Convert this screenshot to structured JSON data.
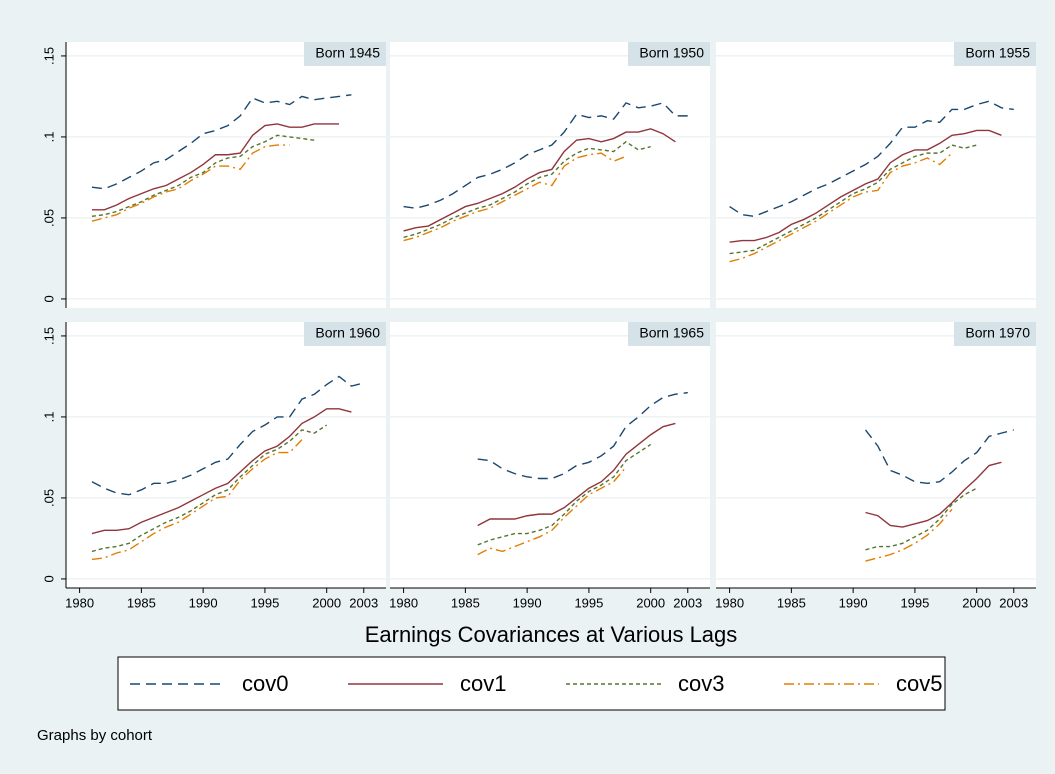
{
  "chart_data": {
    "type": "line",
    "xlabel": "Earnings Covariances at Various Lags",
    "note": "Graphs by cohort",
    "legend_position": "bottom",
    "grid": true,
    "x": [
      1980,
      1981,
      1982,
      1983,
      1984,
      1985,
      1986,
      1987,
      1988,
      1989,
      1990,
      1991,
      1992,
      1993,
      1994,
      1995,
      1996,
      1997,
      1998,
      1999,
      2000,
      2001,
      2002,
      2003
    ],
    "xlim": [
      1978.9,
      2004.8
    ],
    "ylim": [
      -0.0056,
      0.1586
    ],
    "xticks": [
      1980,
      1985,
      1990,
      1995,
      2000,
      2003
    ],
    "yticks": [
      0,
      {
        "value": 0.05,
        "label": ".05"
      },
      {
        "value": 0.1,
        "label": ".1"
      },
      {
        "value": 0.15,
        "label": ".15"
      }
    ],
    "series": [
      {
        "name": "cov0",
        "color": "#1a476f",
        "dash": "10,6"
      },
      {
        "name": "cov1",
        "color": "#90353b",
        "dash": "none"
      },
      {
        "name": "cov3",
        "color": "#55752f",
        "dash": "4,3"
      },
      {
        "name": "cov5",
        "color": "#e37e00",
        "dash": "10,4,2,4"
      }
    ],
    "panels": [
      {
        "title": "Born 1945",
        "values": [
          [
            null,
            0.069,
            0.068,
            0.071,
            0.075,
            0.079,
            0.084,
            0.086,
            0.091,
            0.096,
            0.102,
            0.104,
            0.107,
            0.113,
            0.124,
            0.121,
            0.122,
            0.12,
            0.125,
            0.123,
            0.124,
            0.125,
            0.126,
            null
          ],
          [
            null,
            0.055,
            0.055,
            0.058,
            0.062,
            0.065,
            0.068,
            0.07,
            0.074,
            0.078,
            0.083,
            0.089,
            0.089,
            0.09,
            0.101,
            0.107,
            0.108,
            0.106,
            0.106,
            0.108,
            0.108,
            0.108,
            null,
            null
          ],
          [
            null,
            0.051,
            0.052,
            0.054,
            0.057,
            0.06,
            0.064,
            0.067,
            0.07,
            0.075,
            0.078,
            0.084,
            0.087,
            0.088,
            0.094,
            0.097,
            0.101,
            0.1,
            0.099,
            0.098,
            null,
            null,
            null,
            null
          ],
          [
            null,
            0.048,
            0.05,
            0.052,
            0.056,
            0.059,
            0.063,
            0.066,
            0.068,
            0.073,
            0.077,
            0.082,
            0.082,
            0.08,
            0.09,
            0.094,
            0.095,
            0.095,
            null,
            null,
            null,
            null,
            null,
            null
          ]
        ]
      },
      {
        "title": "Born 1950",
        "values": [
          [
            0.057,
            0.056,
            0.058,
            0.061,
            0.065,
            0.07,
            0.075,
            0.077,
            0.08,
            0.084,
            0.089,
            0.092,
            0.095,
            0.103,
            0.114,
            0.112,
            0.113,
            0.111,
            0.121,
            0.118,
            0.119,
            0.121,
            0.113,
            0.113
          ],
          [
            0.042,
            0.044,
            0.045,
            0.049,
            0.053,
            0.057,
            0.059,
            0.062,
            0.065,
            0.069,
            0.074,
            0.078,
            0.08,
            0.091,
            0.098,
            0.099,
            0.097,
            0.099,
            0.103,
            0.103,
            0.105,
            0.102,
            0.097,
            null
          ],
          [
            0.038,
            0.04,
            0.043,
            0.046,
            0.05,
            0.053,
            0.056,
            0.058,
            0.062,
            0.066,
            0.071,
            0.075,
            0.077,
            0.085,
            0.09,
            0.093,
            0.092,
            0.091,
            0.097,
            0.092,
            0.094,
            null,
            null,
            null
          ],
          [
            0.036,
            0.038,
            0.041,
            0.044,
            0.048,
            0.051,
            0.054,
            0.056,
            0.06,
            0.064,
            0.068,
            0.072,
            0.07,
            0.082,
            0.087,
            0.089,
            0.09,
            0.085,
            0.088,
            null,
            null,
            null,
            null,
            null
          ]
        ]
      },
      {
        "title": "Born 1955",
        "values": [
          [
            0.057,
            0.052,
            0.051,
            0.054,
            0.057,
            0.06,
            0.064,
            0.068,
            0.071,
            0.075,
            0.079,
            0.083,
            0.088,
            0.096,
            0.106,
            0.106,
            0.11,
            0.109,
            0.117,
            0.117,
            0.12,
            0.122,
            0.118,
            0.117
          ],
          [
            0.035,
            0.036,
            0.036,
            0.038,
            0.041,
            0.046,
            0.049,
            0.053,
            0.058,
            0.063,
            0.067,
            0.071,
            0.074,
            0.084,
            0.089,
            0.092,
            0.092,
            0.096,
            0.101,
            0.102,
            0.104,
            0.104,
            0.101,
            null
          ],
          [
            0.028,
            0.029,
            0.03,
            0.034,
            0.038,
            0.042,
            0.046,
            0.05,
            0.055,
            0.06,
            0.065,
            0.068,
            0.072,
            0.08,
            0.084,
            0.088,
            0.09,
            0.09,
            0.095,
            0.093,
            0.095,
            null,
            null,
            null
          ],
          [
            0.023,
            0.025,
            0.028,
            0.032,
            0.036,
            0.04,
            0.044,
            0.048,
            0.053,
            0.058,
            0.063,
            0.066,
            0.067,
            0.078,
            0.082,
            0.084,
            0.087,
            0.083,
            0.09,
            null,
            null,
            null,
            null,
            null
          ]
        ]
      },
      {
        "title": "Born 1960",
        "values": [
          [
            null,
            0.06,
            0.056,
            0.053,
            0.052,
            0.055,
            0.059,
            0.059,
            0.061,
            0.064,
            0.068,
            0.072,
            0.074,
            0.083,
            0.091,
            0.095,
            0.1,
            0.1,
            0.111,
            0.114,
            0.12,
            0.125,
            0.119,
            0.121
          ],
          [
            null,
            0.028,
            0.03,
            0.03,
            0.031,
            0.035,
            0.038,
            0.041,
            0.044,
            0.048,
            0.052,
            0.056,
            0.059,
            0.066,
            0.073,
            0.079,
            0.082,
            0.088,
            0.096,
            0.1,
            0.105,
            0.105,
            0.103,
            null
          ],
          [
            null,
            0.017,
            0.019,
            0.02,
            0.022,
            0.027,
            0.031,
            0.035,
            0.038,
            0.042,
            0.047,
            0.052,
            0.055,
            0.063,
            0.07,
            0.077,
            0.08,
            0.085,
            0.092,
            0.09,
            0.095,
            null,
            null,
            null
          ],
          [
            null,
            0.012,
            0.013,
            0.016,
            0.018,
            0.023,
            0.028,
            0.032,
            0.035,
            0.04,
            0.045,
            0.05,
            0.051,
            0.061,
            0.068,
            0.074,
            0.078,
            0.078,
            0.086,
            null,
            null,
            null,
            null,
            null
          ]
        ]
      },
      {
        "title": "Born 1965",
        "values": [
          [
            null,
            null,
            null,
            null,
            null,
            null,
            0.074,
            0.073,
            0.068,
            0.065,
            0.063,
            0.062,
            0.062,
            0.065,
            0.07,
            0.072,
            0.076,
            0.082,
            0.094,
            0.1,
            0.107,
            0.112,
            0.114,
            0.115
          ],
          [
            null,
            null,
            null,
            null,
            null,
            null,
            0.033,
            0.037,
            0.037,
            0.037,
            0.039,
            0.04,
            0.04,
            0.044,
            0.05,
            0.056,
            0.06,
            0.067,
            0.077,
            0.083,
            0.089,
            0.094,
            0.096,
            null
          ],
          [
            null,
            null,
            null,
            null,
            null,
            null,
            0.021,
            0.024,
            0.026,
            0.028,
            0.028,
            0.03,
            0.033,
            0.04,
            0.048,
            0.054,
            0.058,
            0.063,
            0.073,
            0.078,
            0.083,
            null,
            null,
            null
          ],
          [
            null,
            null,
            null,
            null,
            null,
            null,
            0.015,
            0.019,
            0.017,
            0.02,
            0.023,
            0.026,
            0.03,
            0.038,
            0.045,
            0.052,
            0.056,
            0.06,
            0.069,
            null,
            null,
            null,
            null,
            null
          ]
        ]
      },
      {
        "title": "Born 1970",
        "values": [
          [
            null,
            null,
            null,
            null,
            null,
            null,
            null,
            null,
            null,
            null,
            null,
            0.092,
            0.082,
            0.067,
            0.064,
            0.06,
            0.059,
            0.06,
            0.066,
            0.073,
            0.078,
            0.088,
            0.09,
            0.092
          ],
          [
            null,
            null,
            null,
            null,
            null,
            null,
            null,
            null,
            null,
            null,
            null,
            0.041,
            0.039,
            0.033,
            0.032,
            0.034,
            0.036,
            0.04,
            0.047,
            0.055,
            0.062,
            0.07,
            0.072,
            null
          ],
          [
            null,
            null,
            null,
            null,
            null,
            null,
            null,
            null,
            null,
            null,
            null,
            0.018,
            0.02,
            0.02,
            0.022,
            0.026,
            0.03,
            0.037,
            0.046,
            0.052,
            0.056,
            null,
            null,
            null
          ],
          [
            null,
            null,
            null,
            null,
            null,
            null,
            null,
            null,
            null,
            null,
            null,
            0.011,
            0.013,
            0.015,
            0.018,
            0.022,
            0.027,
            0.034,
            0.043,
            null,
            null,
            null,
            null,
            null
          ]
        ]
      }
    ]
  }
}
